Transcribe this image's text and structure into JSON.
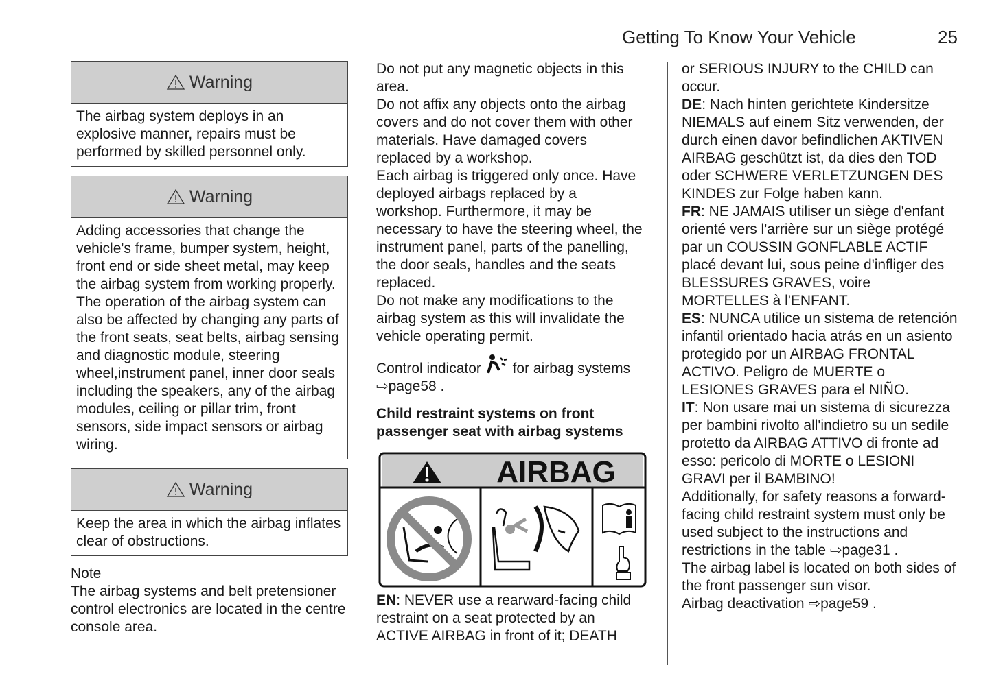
{
  "header": {
    "section_title": "Getting To Know Your Vehicle",
    "page_number": "25"
  },
  "col1": {
    "warnings": [
      {
        "title": "Warning",
        "body": "The airbag system deploys in an explosive manner, repairs must be performed by skilled personnel only."
      },
      {
        "title": "Warning",
        "body": "Adding accessories that change the vehicle's frame, bumper system, height, front end or side sheet metal, may keep the airbag system from working properly. The operation of the airbag system can also be affected by changing any parts of the front seats, seat belts, airbag sensing and diagnostic module, steering wheel,instrument panel, inner door seals including the speakers, any of the airbag modules, ceiling or pillar trim, front sensors, side impact sensors or airbag wiring."
      },
      {
        "title": "Warning",
        "body": "Keep the area in which the airbag inflates clear of obstructions."
      }
    ],
    "note_title": "Note",
    "note_body": "The airbag systems and belt pretensioner control electronics are located in the centre console area."
  },
  "col2": {
    "paragraphs": [
      "Do not put any magnetic objects in this area.",
      "Do not affix any objects onto the airbag covers and do not cover them with other materials. Have damaged covers replaced by a workshop.",
      "Each airbag is triggered only once. Have deployed airbags replaced by a workshop. Furthermore, it may be necessary to have the steering wheel, the instrument panel, parts of the panelling, the door seals, handles and the seats replaced.",
      "Do not make any modifications to the airbag system as this will invalidate the vehicle operating permit."
    ],
    "control_indicator_before": "Control indicator",
    "control_indicator_after": "for airbag systems",
    "control_indicator_link": "⇨page58",
    "subheading": "Child restraint systems on front passenger seat with airbag systems",
    "label_title": "AIRBAG",
    "en_code": "EN",
    "en_text": ": NEVER use a rearward-facing child restraint on a seat protected by an ACTIVE AIRBAG in front of it; DEATH"
  },
  "col3": {
    "continuation": "or SERIOUS INJURY to the CHILD can occur.",
    "languages": [
      {
        "code": "DE",
        "text": ": Nach hinten gerichtete Kindersitze NIEMALS auf einem Sitz verwenden, der durch einen davor befindlichen AKTIVEN AIRBAG geschützt ist, da dies den TOD oder SCHWERE VERLETZUNGEN DES KINDES zur Folge haben kann."
      },
      {
        "code": "FR",
        "text": ": NE JAMAIS utiliser un siège d'enfant orienté vers l'arrière sur un siège protégé par un COUSSIN GONFLABLE ACTIF placé devant lui, sous peine d'infliger des BLESSURES GRAVES, voire MORTELLES à l'ENFANT."
      },
      {
        "code": "ES",
        "text": ": NUNCA utilice un sistema de retención infantil orientado hacia atrás en un asiento protegido por un AIRBAG FRONTAL ACTIVO. Peligro de MUERTE o LESIONES GRAVES para el NIÑO."
      },
      {
        "code": "IT",
        "text": ": Non usare mai un sistema di sicurezza per bambini rivolto all'indietro su un sedile protetto da AIRBAG ATTIVO di fronte ad esso: pericolo di MORTE o LESIONI GRAVI per il BAMBINO!"
      }
    ],
    "additional": "Additionally, for safety reasons a forward-facing child restraint system must only be used subject to the instructions and restrictions in the table",
    "additional_link": "⇨page31",
    "label_location": "The airbag label is located on both sides of the front passenger sun visor.",
    "deactivation": "Airbag deactivation",
    "deactivation_link": "⇨page59"
  },
  "colors": {
    "warning_header_bg": "#cfcfcf",
    "label_header_bg": "#cccccc",
    "prohibition_gray": "#8a8a8a"
  }
}
